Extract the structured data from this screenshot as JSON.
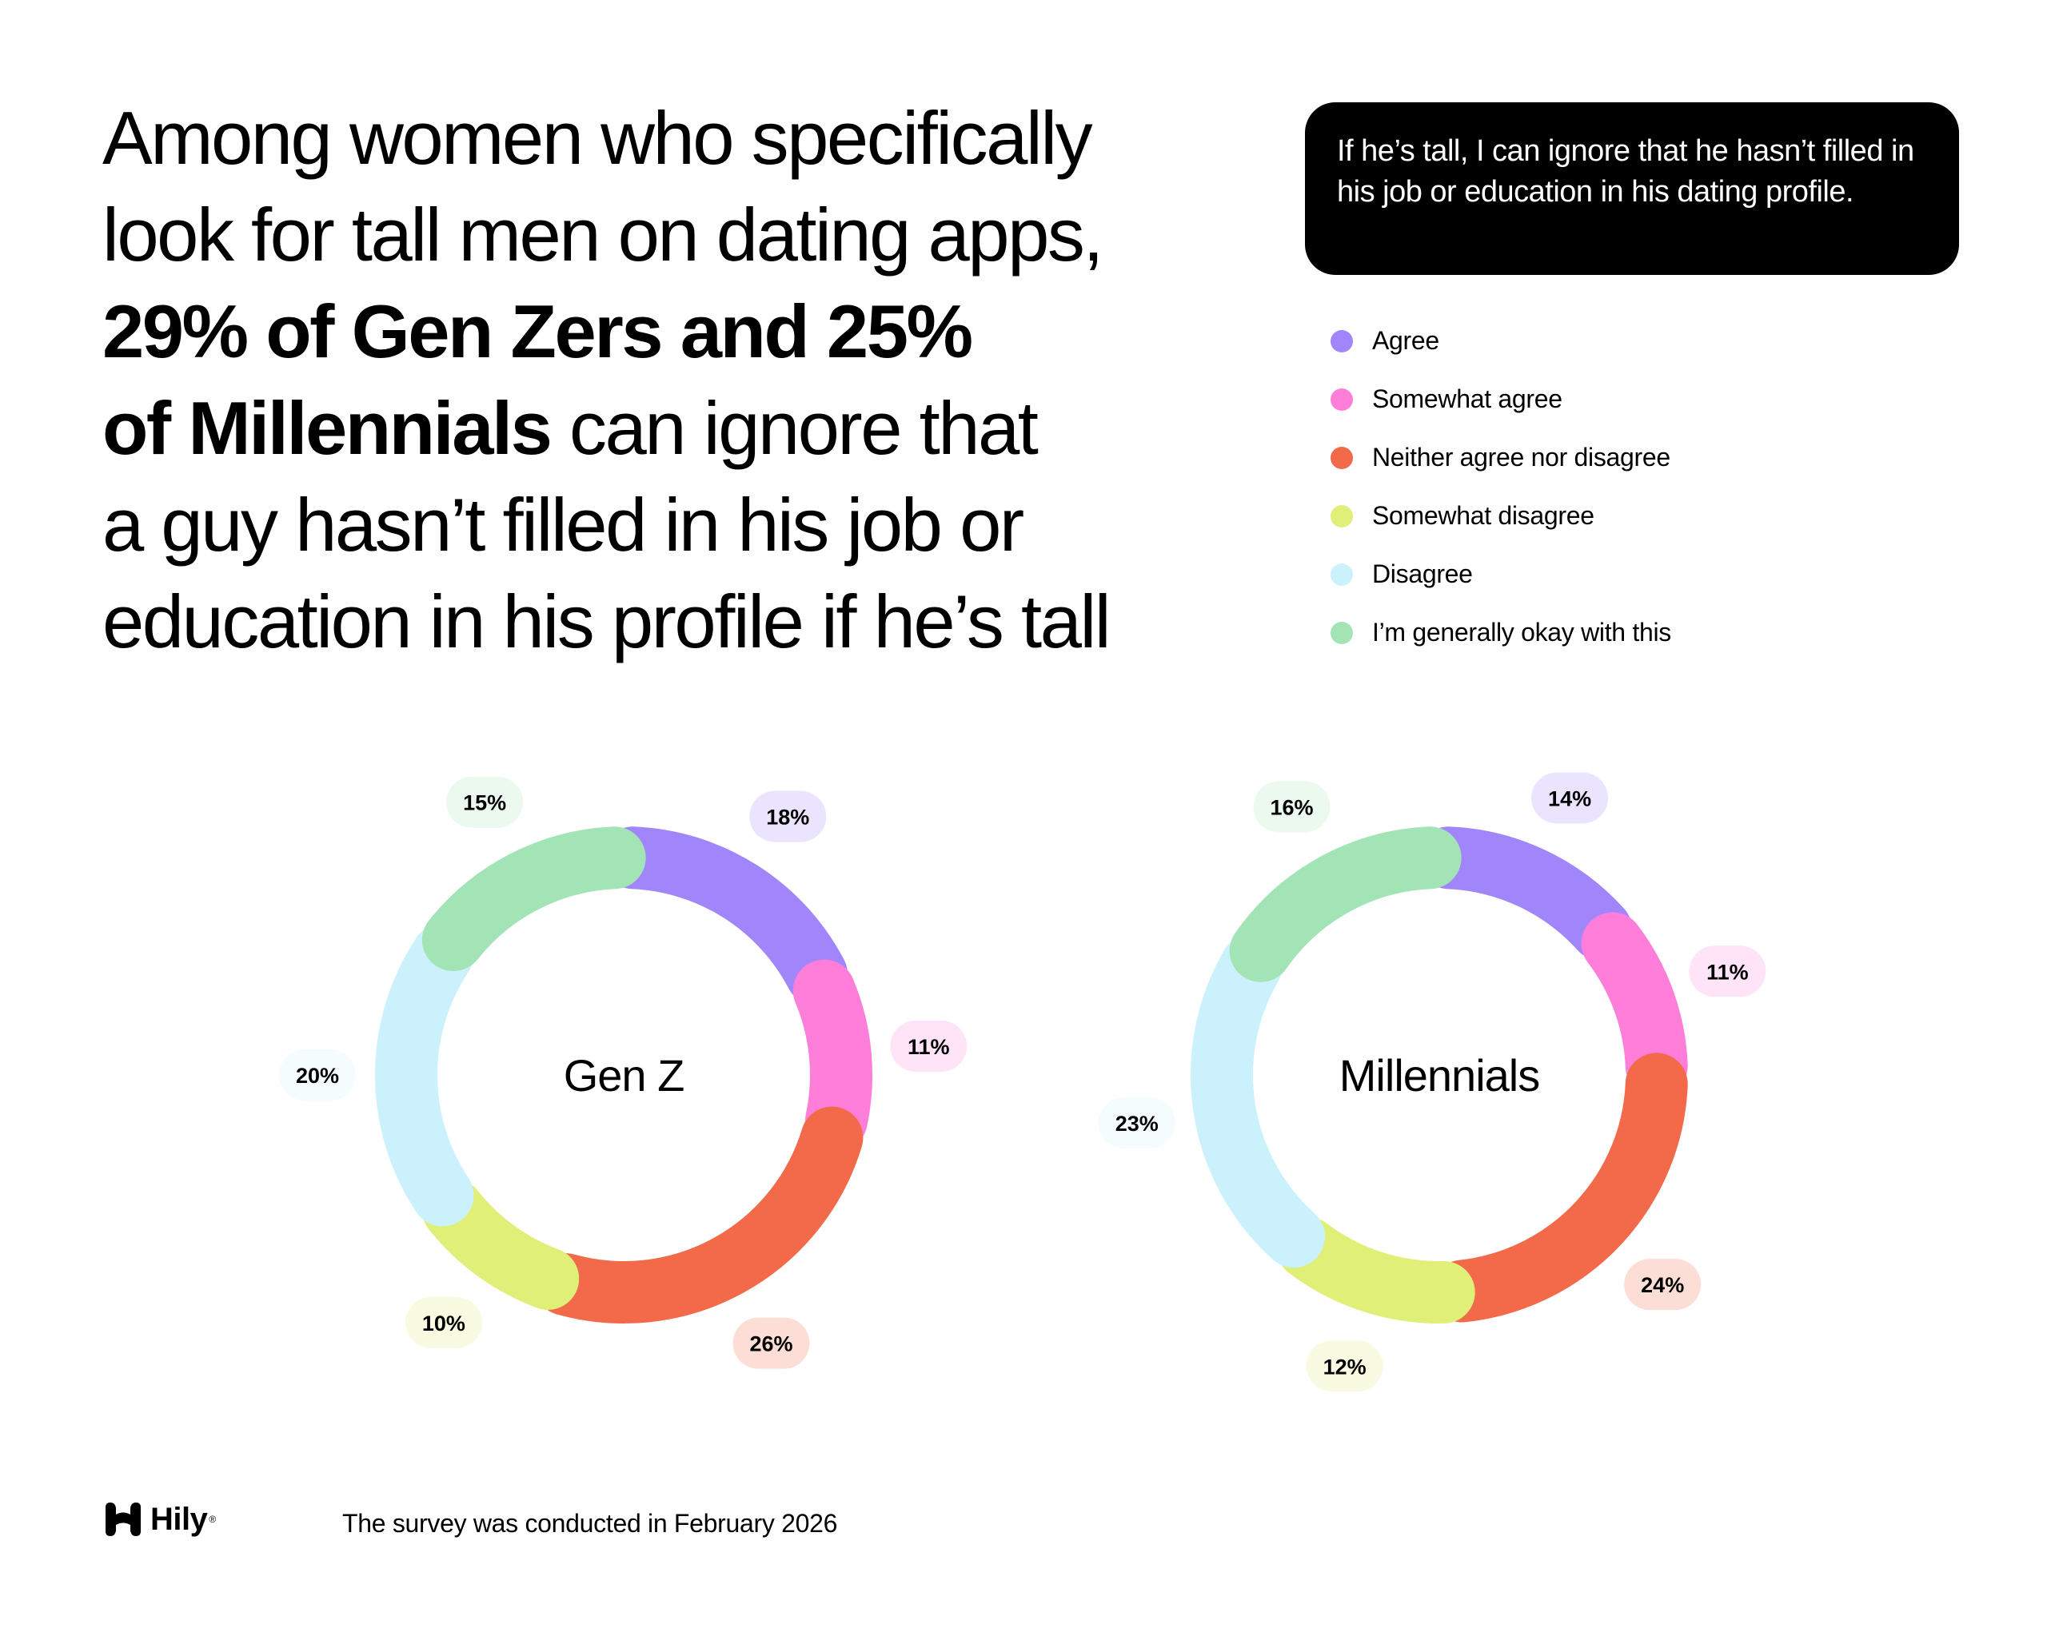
{
  "headline": {
    "line1": "Among women who specifically",
    "line2": "look for tall men on dating apps,",
    "line3_bold": "29% of Gen Zers and 25%",
    "line4_bold": "of Millennials",
    "line4_rest": " can ignore that",
    "line5": "a guy hasn’t filled in his job or",
    "line6": "education in his profile if he’s tall"
  },
  "question": "If he’s tall, I can ignore that he hasn’t filled in his job or education in his dating profile.",
  "legend": [
    {
      "label": "Agree",
      "color": "#A185FA"
    },
    {
      "label": "Somewhat agree",
      "color": "#FF7ED9"
    },
    {
      "label": "Neither agree nor disagree",
      "color": "#F26A4A"
    },
    {
      "label": "Somewhat disagree",
      "color": "#DFEF77"
    },
    {
      "label": "Disagree",
      "color": "#CBF2FC"
    },
    {
      "label": "I’m generally okay with this",
      "color": "#A3E4B6"
    }
  ],
  "chart_data": [
    {
      "type": "pie",
      "variant": "donut",
      "center_label": "Gen Z",
      "categories": [
        "Agree",
        "Somewhat agree",
        "Neither agree nor disagree",
        "Somewhat disagree",
        "Disagree",
        "I’m generally okay with this"
      ],
      "values": [
        18,
        11,
        26,
        10,
        20,
        15
      ],
      "labels": [
        "18%",
        "11%",
        "26%",
        "10%",
        "20%",
        "15%"
      ]
    },
    {
      "type": "pie",
      "variant": "donut",
      "center_label": "Millennials",
      "categories": [
        "Agree",
        "Somewhat agree",
        "Neither agree nor disagree",
        "Somewhat disagree",
        "Disagree",
        "I’m generally okay with this"
      ],
      "values": [
        14,
        11,
        24,
        12,
        23,
        16
      ],
      "labels": [
        "14%",
        "11%",
        "24%",
        "12%",
        "23%",
        "16%"
      ]
    }
  ],
  "footer": {
    "brand": "Hily",
    "registered": "®",
    "note": "The survey was conducted in February 2026"
  }
}
